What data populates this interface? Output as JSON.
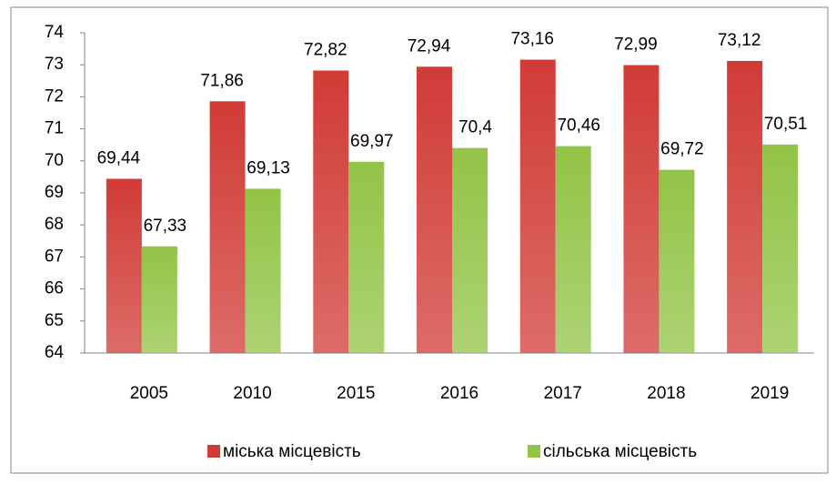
{
  "chart_data": {
    "type": "bar",
    "categories": [
      "2005",
      "2010",
      "2015",
      "2016",
      "2017",
      "2018",
      "2019"
    ],
    "series": [
      {
        "name": "міська місцевість",
        "color": "#d13b36",
        "values": [
          69.44,
          71.86,
          72.82,
          72.94,
          73.16,
          72.99,
          73.12
        ],
        "value_labels": [
          "69,44",
          "71,86",
          "72,82",
          "72,94",
          "73,16",
          "72,99",
          "73,12"
        ]
      },
      {
        "name": "сільська місцевість",
        "color": "#92c446",
        "values": [
          67.33,
          69.13,
          69.97,
          70.4,
          70.46,
          69.72,
          70.51
        ],
        "value_labels": [
          "67,33",
          "69,13",
          "69,97",
          "70,4",
          "70,46",
          "69,72",
          "70,51"
        ]
      }
    ],
    "ylim": [
      64,
      74
    ],
    "yticks": [
      64,
      65,
      66,
      67,
      68,
      69,
      70,
      71,
      72,
      73,
      74
    ],
    "legend": "bottom"
  }
}
